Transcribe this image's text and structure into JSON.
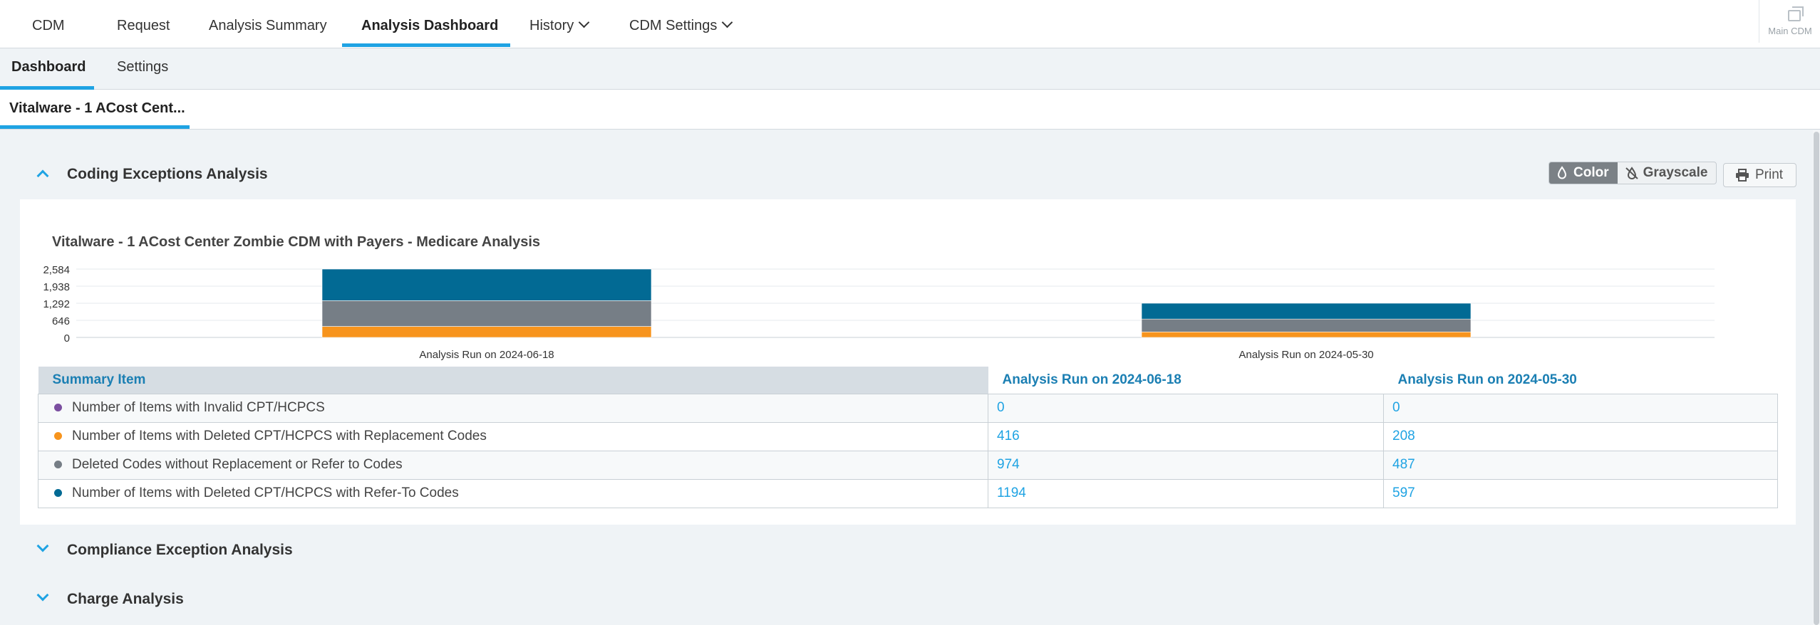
{
  "topnav": {
    "tabs": [
      {
        "label": "CDM"
      },
      {
        "label": "Request"
      },
      {
        "label": "Analysis Summary"
      },
      {
        "label": "Analysis Dashboard"
      },
      {
        "label": "History"
      },
      {
        "label": "CDM Settings"
      }
    ],
    "active_tab": "Analysis Dashboard",
    "main_cdm_label": "Main CDM"
  },
  "subnav": {
    "tabs": [
      {
        "label": "Dashboard"
      },
      {
        "label": "Settings"
      }
    ],
    "active_tab": "Dashboard"
  },
  "doc_tab": {
    "label": "Vitalware - 1 ACost Cent..."
  },
  "sections": {
    "coding": {
      "title": "Coding Exceptions Analysis",
      "expanded": true
    },
    "compliance": {
      "title": "Compliance Exception Analysis",
      "expanded": false
    },
    "charge": {
      "title": "Charge Analysis",
      "expanded": false
    }
  },
  "toolbar": {
    "color_label": "Color",
    "grayscale_label": "Grayscale",
    "print_label": "Print",
    "mode": "Color"
  },
  "colors": {
    "accent": "#1fa3e3",
    "purple": "#7b4fa0",
    "orange": "#f7941d",
    "gray": "#767e86",
    "teal": "#026a94"
  },
  "table": {
    "headers": [
      "Summary Item",
      "Analysis Run on 2024-06-18",
      "Analysis Run on 2024-05-30"
    ],
    "rows": [
      {
        "label": "Number of Items with Invalid CPT/HCPCS",
        "color": "#7b4fa0",
        "v1": "0",
        "v2": "0"
      },
      {
        "label": "Number of Items with Deleted CPT/HCPCS with Replacement Codes",
        "color": "#f7941d",
        "v1": "416",
        "v2": "208"
      },
      {
        "label": "Deleted Codes without Replacement or Refer to Codes",
        "color": "#767e86",
        "v1": "974",
        "v2": "487"
      },
      {
        "label": "Number of Items with Deleted CPT/HCPCS with Refer-To Codes",
        "color": "#026a94",
        "v1": "1194",
        "v2": "597"
      }
    ]
  },
  "chart_data": {
    "type": "bar",
    "stacked": true,
    "title": "Vitalware - 1 ACost Center Zombie CDM with Payers - Medicare Analysis",
    "categories": [
      "Analysis Run on 2024-06-18",
      "Analysis Run on 2024-05-30"
    ],
    "series": [
      {
        "name": "Number of Items with Invalid CPT/HCPCS",
        "color": "#7b4fa0",
        "values": [
          0,
          0
        ]
      },
      {
        "name": "Number of Items with Deleted CPT/HCPCS with Replacement Codes",
        "color": "#f7941d",
        "values": [
          416,
          208
        ]
      },
      {
        "name": "Deleted Codes without Replacement or Refer to Codes",
        "color": "#767e86",
        "values": [
          974,
          487
        ]
      },
      {
        "name": "Number of Items with Deleted CPT/HCPCS with Refer-To Codes",
        "color": "#026a94",
        "values": [
          1194,
          597
        ]
      }
    ],
    "yticks": [
      "2,584",
      "1,938",
      "1,292",
      "646",
      "0"
    ],
    "ylim": [
      0,
      2584
    ],
    "grid": true,
    "legend": "none"
  }
}
